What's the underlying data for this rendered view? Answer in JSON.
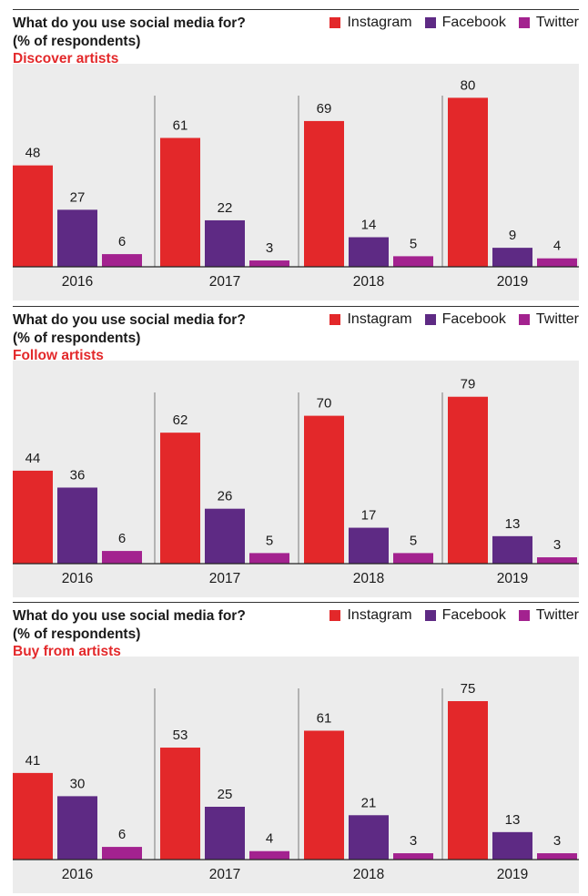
{
  "colors": {
    "instagram": "#e3282a",
    "facebook": "#5e2a84",
    "twitter": "#a3228f",
    "subtitle": "#e3282a"
  },
  "legend": [
    "Instagram",
    "Facebook",
    "Twitter"
  ],
  "panels": [
    {
      "title_line1": "What do you use social media for?",
      "title_line2": "(% of respondents)",
      "subtitle": "Discover artists"
    },
    {
      "title_line1": "What do you use social media for?",
      "title_line2": "(% of respondents)",
      "subtitle": "Follow artists"
    },
    {
      "title_line1": "What do you use social media for?",
      "title_line2": "(% of respondents)",
      "subtitle": "Buy from artists"
    }
  ],
  "chart_data": [
    {
      "type": "bar",
      "title": "What do you use social media for? (% of respondents)",
      "subtitle": "Discover artists",
      "categories": [
        "2016",
        "2017",
        "2018",
        "2019"
      ],
      "series": [
        {
          "name": "Instagram",
          "values": [
            48,
            61,
            69,
            80
          ]
        },
        {
          "name": "Facebook",
          "values": [
            27,
            22,
            14,
            9
          ]
        },
        {
          "name": "Twitter",
          "values": [
            6,
            3,
            5,
            4
          ]
        }
      ],
      "ylim": [
        0,
        80
      ],
      "legend": "top-right",
      "grid": false
    },
    {
      "type": "bar",
      "title": "What do you use social media for? (% of respondents)",
      "subtitle": "Follow artists",
      "categories": [
        "2016",
        "2017",
        "2018",
        "2019"
      ],
      "series": [
        {
          "name": "Instagram",
          "values": [
            44,
            62,
            70,
            79
          ]
        },
        {
          "name": "Facebook",
          "values": [
            36,
            26,
            17,
            13
          ]
        },
        {
          "name": "Twitter",
          "values": [
            6,
            5,
            5,
            3
          ]
        }
      ],
      "ylim": [
        0,
        80
      ],
      "legend": "top-right",
      "grid": false
    },
    {
      "type": "bar",
      "title": "What do you use social media for? (% of respondents)",
      "subtitle": "Buy from artists",
      "categories": [
        "2016",
        "2017",
        "2018",
        "2019"
      ],
      "series": [
        {
          "name": "Instagram",
          "values": [
            41,
            53,
            61,
            75
          ]
        },
        {
          "name": "Facebook",
          "values": [
            30,
            25,
            21,
            13
          ]
        },
        {
          "name": "Twitter",
          "values": [
            6,
            4,
            3,
            3
          ]
        }
      ],
      "ylim": [
        0,
        80
      ],
      "legend": "top-right",
      "grid": false
    }
  ]
}
